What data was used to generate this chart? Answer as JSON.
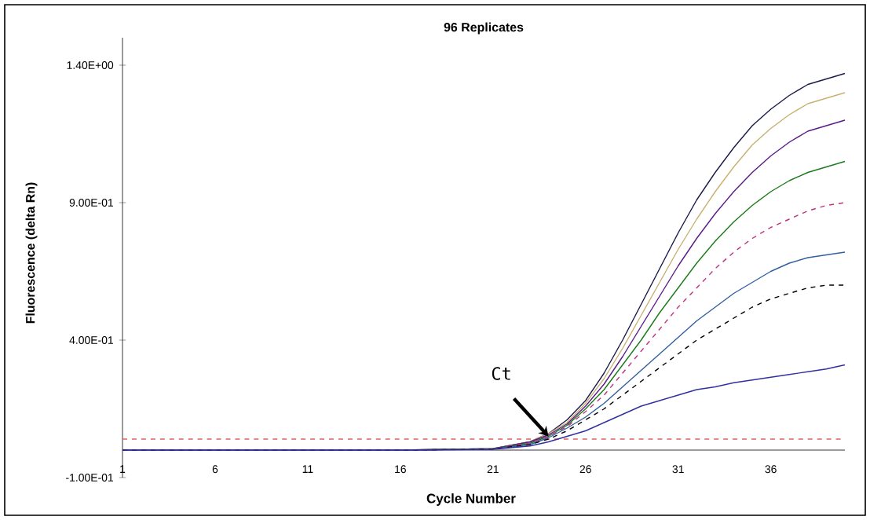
{
  "chart_data": {
    "type": "line",
    "title": "96 Replicates",
    "xlabel": "Cycle Number",
    "ylabel": "Fluorescence (delta Rn)",
    "xlim": [
      1,
      40
    ],
    "ylim": [
      -0.1,
      1.5
    ],
    "xticks": [
      1,
      6,
      11,
      16,
      21,
      26,
      31,
      36
    ],
    "yticks": [
      {
        "value": 1.4,
        "label": "1.40E+00"
      },
      {
        "value": 0.9,
        "label": "9.00E-01"
      },
      {
        "value": 0.4,
        "label": "4.00E-01"
      },
      {
        "value": -0.1,
        "label": "-1.00E-01"
      }
    ],
    "x": [
      1,
      16,
      21,
      23,
      24,
      25,
      26,
      27,
      28,
      29,
      30,
      31,
      32,
      33,
      34,
      35,
      36,
      37,
      38,
      39,
      40
    ],
    "series": [
      {
        "color": "#1a1a4a",
        "values": [
          0,
          0,
          0.005,
          0.03,
          0.06,
          0.11,
          0.18,
          0.28,
          0.4,
          0.53,
          0.66,
          0.79,
          0.91,
          1.01,
          1.1,
          1.18,
          1.24,
          1.29,
          1.33,
          1.35,
          1.37
        ]
      },
      {
        "color": "#c8b070",
        "values": [
          0,
          0,
          0.005,
          0.03,
          0.06,
          0.1,
          0.17,
          0.26,
          0.37,
          0.49,
          0.61,
          0.73,
          0.84,
          0.94,
          1.03,
          1.11,
          1.17,
          1.22,
          1.26,
          1.28,
          1.3
        ]
      },
      {
        "color": "#5a1a8a",
        "values": [
          0,
          0,
          0.005,
          0.03,
          0.055,
          0.095,
          0.16,
          0.24,
          0.34,
          0.45,
          0.56,
          0.67,
          0.77,
          0.86,
          0.94,
          1.01,
          1.07,
          1.12,
          1.16,
          1.18,
          1.2
        ]
      },
      {
        "color": "#1a7a1a",
        "values": [
          0,
          0,
          0.004,
          0.025,
          0.05,
          0.09,
          0.15,
          0.22,
          0.31,
          0.4,
          0.5,
          0.59,
          0.68,
          0.76,
          0.83,
          0.89,
          0.94,
          0.98,
          1.01,
          1.03,
          1.05
        ]
      },
      {
        "color": "#c03080",
        "line_style": "dashed",
        "values": [
          0,
          0,
          0.004,
          0.025,
          0.05,
          0.085,
          0.14,
          0.2,
          0.28,
          0.36,
          0.44,
          0.52,
          0.59,
          0.66,
          0.72,
          0.77,
          0.81,
          0.84,
          0.87,
          0.89,
          0.9
        ]
      },
      {
        "color": "#3060a0",
        "values": [
          0,
          0,
          0.004,
          0.02,
          0.045,
          0.08,
          0.12,
          0.17,
          0.23,
          0.29,
          0.35,
          0.41,
          0.47,
          0.52,
          0.57,
          0.61,
          0.65,
          0.68,
          0.7,
          0.71,
          0.72
        ]
      },
      {
        "color": "#000000",
        "line_style": "dashed",
        "values": [
          0,
          0,
          0.004,
          0.02,
          0.04,
          0.07,
          0.11,
          0.15,
          0.2,
          0.25,
          0.3,
          0.35,
          0.4,
          0.44,
          0.48,
          0.52,
          0.55,
          0.57,
          0.59,
          0.6,
          0.6
        ]
      },
      {
        "color": "#3030a0",
        "values": [
          0,
          0,
          0.003,
          0.015,
          0.03,
          0.05,
          0.07,
          0.1,
          0.13,
          0.16,
          0.18,
          0.2,
          0.22,
          0.23,
          0.245,
          0.255,
          0.265,
          0.275,
          0.285,
          0.295,
          0.31
        ]
      }
    ],
    "ref_lines": [
      {
        "axis": "y",
        "value": 0.04,
        "color": "#e06060",
        "line_style": "dashed"
      }
    ],
    "annotations": [
      {
        "text": "Ct",
        "x": 24,
        "y": 0.05
      }
    ],
    "grid": false
  }
}
